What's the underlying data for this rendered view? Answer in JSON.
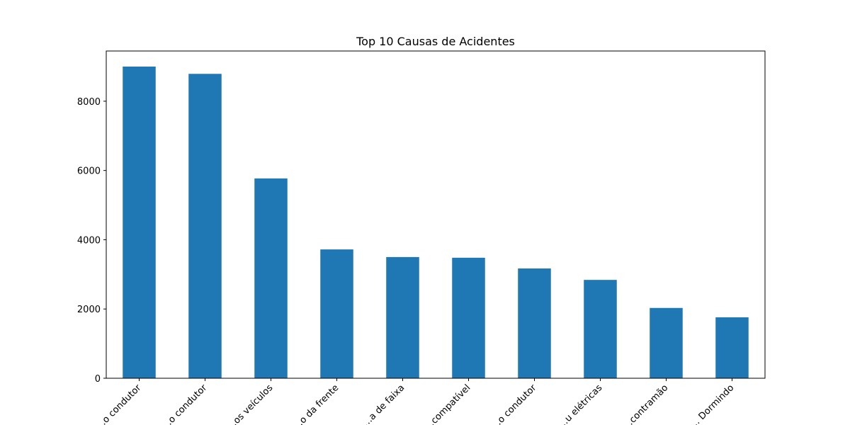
{
  "chart_data": {
    "type": "bar",
    "title": "Top 10 Causas de Acidentes",
    "xlabel": "",
    "ylabel": "",
    "categories": [
      "…o condutor",
      "…o condutor",
      "…os veículos",
      "…o da frente",
      "…a de faixa",
      "…compatível",
      "…o condutor",
      "…u elétricas",
      "…contramão",
      "… Dormindo"
    ],
    "values": [
      9000,
      8790,
      5770,
      3720,
      3500,
      3480,
      3170,
      2840,
      2030,
      1760
    ],
    "ylim": [
      0,
      9450
    ],
    "yticks": [
      0,
      2000,
      4000,
      6000,
      8000
    ],
    "grid": false,
    "bar_color": "#1f77b4"
  }
}
